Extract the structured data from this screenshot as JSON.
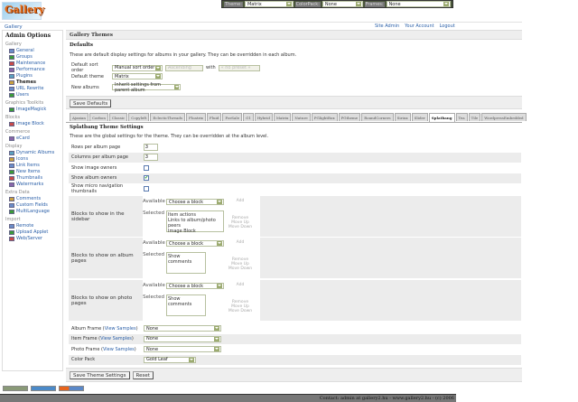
{
  "topbar": {
    "theme_label": "Theme:",
    "theme_value": "Matrix",
    "colorpack_label": "ColorPack:",
    "colorpack_value": "None",
    "frames_label": "Frames:",
    "frames_value": "None"
  },
  "logo_text": "Gallery",
  "breadcrumb": "Gallery",
  "header_links": [
    "Site Admin",
    "Your Account",
    "Logout"
  ],
  "sidebar": {
    "title": "Admin Options",
    "groups": [
      {
        "label": "Gallery",
        "items": [
          "General",
          "Groups",
          "Maintenance",
          "Performance",
          "Plugins",
          "Themes",
          "URL Rewrite",
          "Users"
        ]
      },
      {
        "label": "Graphics Toolkits",
        "items": [
          "ImageMagick"
        ]
      },
      {
        "label": "Blocks",
        "items": [
          "Image Block"
        ]
      },
      {
        "label": "Commerce",
        "items": [
          "eCard"
        ]
      },
      {
        "label": "Display",
        "items": [
          "Dynamic Albums",
          "Icons",
          "Link Items",
          "New Items",
          "Thumbnails",
          "Watermarks"
        ]
      },
      {
        "label": "Extra Data",
        "items": [
          "Comments",
          "Custom Fields",
          "MultiLanguage"
        ]
      },
      {
        "label": "Import",
        "items": [
          "Remote",
          "Upload Applet",
          "Web/Server"
        ]
      }
    ],
    "current": "Themes"
  },
  "main": {
    "title": "Gallery Themes",
    "defaults": {
      "title": "Defaults",
      "description": "These are default display settings for albums in your gallery.  They can be overridden in each album.",
      "sort_label": "Default sort order",
      "sort_value": "Manual sort order",
      "direction_value": "Ascending",
      "with_label": "with",
      "preset_value": "« no preset »",
      "theme_label": "Default theme",
      "theme_value": "Matrix",
      "new_label": "New albums",
      "new_value": "Inherit settings from parent album",
      "save_label": "Save Defaults"
    },
    "tabs": [
      "Ajaxian",
      "Carbon",
      "Classic",
      "Copyleft",
      "EclecticThreads",
      "Floatrix",
      "Fluid",
      "ForSale",
      "G1",
      "Hybrid",
      "Matrix",
      "Nature",
      "PGlightBox",
      "PGtheme",
      "RoundCorners",
      "Siriux",
      "Slider",
      "Splatbang",
      "Tea",
      "Tile",
      "WordpressEmbedded"
    ],
    "active_tab": "Splatbang",
    "theme": {
      "title": "Splatbang Theme Settings",
      "description": "These are the global settings for the theme.  They can be overridden at the album level.",
      "rows_label": "Rows per album page",
      "rows_value": "3",
      "cols_label": "Columns per album page",
      "cols_value": "3",
      "image_owners_label": "Show image owners",
      "image_owners": false,
      "album_owners_label": "Show album owners",
      "album_owners": true,
      "micro_label": "Show micro navigation thumbnails",
      "micro": false,
      "available_label": "Available",
      "selected_label": "Selected",
      "choose": "Choose a block",
      "add": "Add",
      "remove": "Remove",
      "move_up": "Move Up",
      "move_down": "Move Down",
      "sidebar_label": "Blocks to show in the sidebar",
      "sidebar_blocks": [
        "Item actions",
        "Links to album/photo peers",
        "Image Block"
      ],
      "album_label": "Blocks to show on album pages",
      "album_blocks": [
        "Show comments"
      ],
      "photo_label": "Blocks to show on photo pages",
      "photo_blocks": [
        "Show comments"
      ],
      "view_samples": "View Samples",
      "album_frame_label": "Album Frame",
      "album_frame": "None",
      "item_frame_label": "Item Frame",
      "item_frame": "None",
      "photo_frame_label": "Photo Frame",
      "photo_frame": "None",
      "colorpack_label": "Color Pack",
      "colorpack": "Gold Leaf",
      "save_label": "Save Theme Settings",
      "reset_label": "Reset"
    }
  },
  "footer": "Contact: admin at gallery2.hu - www.gallery2.hu - (c) 2006"
}
